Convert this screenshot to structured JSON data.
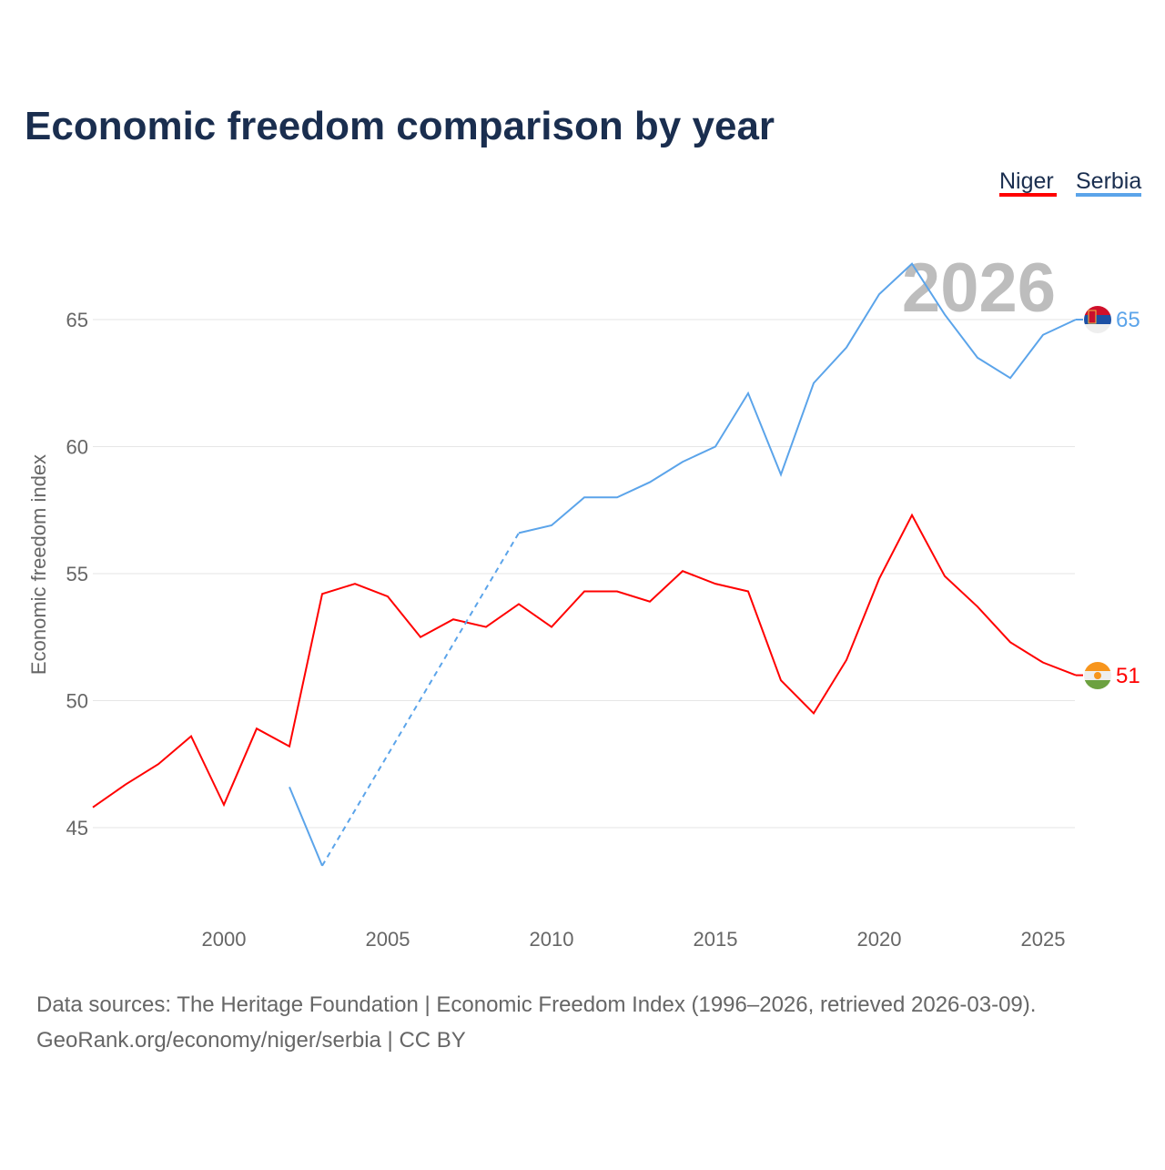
{
  "chart_data": {
    "type": "line",
    "title": "Economic freedom comparison by year",
    "xlabel": "",
    "ylabel": "Economic freedom index",
    "xlim": [
      1996,
      2026
    ],
    "ylim": [
      42,
      68
    ],
    "xticks": [
      2000,
      2005,
      2010,
      2015,
      2020,
      2025
    ],
    "yticks": [
      45,
      50,
      55,
      60,
      65
    ],
    "grid": true,
    "legend_position": "top-right",
    "current_year_label": "2026",
    "series": [
      {
        "name": "Niger",
        "color": "#ff0000",
        "end_label": "51",
        "flag": "niger-flag",
        "x": [
          1996,
          1997,
          1998,
          1999,
          2000,
          2001,
          2002,
          2003,
          2004,
          2005,
          2006,
          2007,
          2008,
          2009,
          2010,
          2011,
          2012,
          2013,
          2014,
          2015,
          2016,
          2017,
          2018,
          2019,
          2020,
          2021,
          2022,
          2023,
          2024,
          2025,
          2026
        ],
        "y": [
          45.8,
          46.7,
          47.5,
          48.6,
          45.9,
          48.9,
          48.2,
          54.2,
          54.6,
          54.1,
          52.5,
          53.2,
          52.9,
          53.8,
          52.9,
          54.3,
          54.3,
          53.9,
          55.1,
          54.6,
          54.3,
          50.8,
          49.5,
          51.6,
          54.8,
          57.3,
          54.9,
          53.7,
          52.3,
          51.5,
          51.0
        ]
      },
      {
        "name": "Serbia",
        "color": "#5ba4ea",
        "end_label": "65",
        "flag": "serbia-flag",
        "x": [
          2002,
          2003,
          2004,
          2005,
          2006,
          2007,
          2008,
          2009,
          2010,
          2011,
          2012,
          2013,
          2014,
          2015,
          2016,
          2017,
          2018,
          2019,
          2020,
          2021,
          2022,
          2023,
          2024,
          2025,
          2026
        ],
        "y": [
          46.6,
          43.5,
          null,
          null,
          null,
          null,
          null,
          56.6,
          56.9,
          58.0,
          58.0,
          58.6,
          59.4,
          60.0,
          62.1,
          58.9,
          62.5,
          63.9,
          66.0,
          67.2,
          65.2,
          63.5,
          62.7,
          64.4,
          65.0
        ]
      }
    ]
  },
  "footer": {
    "line1": "Data sources: The Heritage Foundation | Economic Freedom Index (1996–2026, retrieved 2026-03-09).",
    "line2": "GeoRank.org/economy/niger/serbia | CC BY"
  }
}
